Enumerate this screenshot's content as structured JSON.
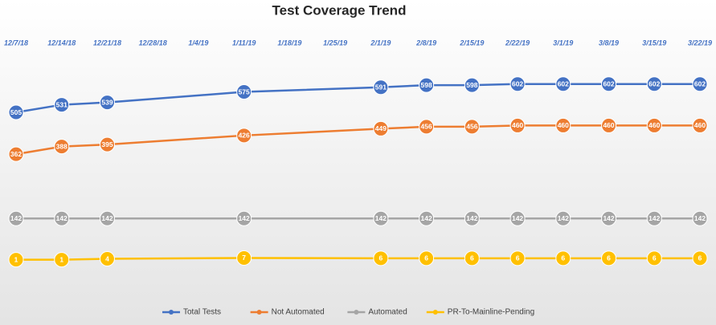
{
  "chart_data": {
    "type": "line",
    "title": "Test Coverage Trend",
    "categories": [
      "12/7/18",
      "12/14/18",
      "12/21/18",
      "12/28/18",
      "1/4/19",
      "1/11/19",
      "1/18/19",
      "1/25/19",
      "2/1/19",
      "2/8/19",
      "2/15/19",
      "2/22/19",
      "3/1/19",
      "3/8/19",
      "3/15/19",
      "3/22/19"
    ],
    "series": [
      {
        "name": "Total Tests",
        "color": "#4472c4",
        "values": [
          505,
          531,
          539,
          null,
          null,
          575,
          null,
          null,
          591,
          598,
          598,
          602,
          602,
          602,
          602,
          602
        ]
      },
      {
        "name": "Not Automated",
        "color": "#ed7d31",
        "values": [
          362,
          388,
          395,
          null,
          null,
          426,
          null,
          null,
          449,
          456,
          456,
          460,
          460,
          460,
          460,
          460
        ]
      },
      {
        "name": "Automated",
        "color": "#a5a5a5",
        "values": [
          142,
          142,
          142,
          null,
          null,
          142,
          null,
          null,
          142,
          142,
          142,
          142,
          142,
          142,
          142,
          142
        ]
      },
      {
        "name": "PR-To-Mainline-Pending",
        "color": "#ffc000",
        "values": [
          1,
          1,
          4,
          null,
          null,
          7,
          null,
          null,
          6,
          6,
          6,
          6,
          6,
          6,
          6,
          6
        ]
      }
    ],
    "ylim": [
      0,
      700
    ],
    "span_gaps": true,
    "legend": "bottom"
  }
}
